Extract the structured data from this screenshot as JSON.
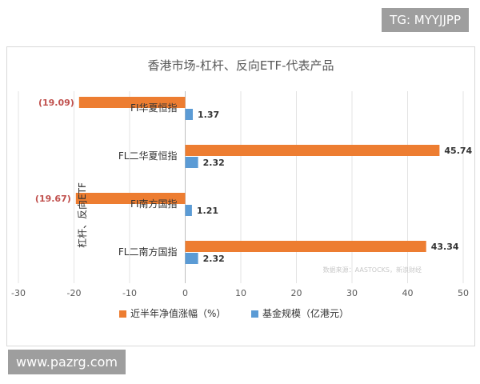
{
  "watermarks": {
    "telegram": "TG: MYYJJPP",
    "site": "www.pazrg.com"
  },
  "chart_data": {
    "type": "bar",
    "orientation": "horizontal",
    "title": "香港市场-杠杆、反向ETF-代表产品",
    "group_label": "杠杆、反向ETF",
    "source_note": "数据来源：AASTOCKS，新浪财经",
    "categories": [
      "FI华夏恒指",
      "FL二华夏恒指",
      "FI南方国指",
      "FL二南方国指"
    ],
    "series": [
      {
        "name": "近半年净值涨幅（%）",
        "color": "#ED7D31",
        "values": [
          -19.09,
          45.74,
          -19.67,
          43.34
        ],
        "labels": [
          "(19.09)",
          "45.74",
          "(19.67)",
          "43.34"
        ]
      },
      {
        "name": "基金规模（亿港元）",
        "color": "#5B9BD5",
        "values": [
          1.37,
          2.32,
          1.21,
          2.32
        ],
        "labels": [
          "1.37",
          "2.32",
          "1.21",
          "2.32"
        ]
      }
    ],
    "xlim": [
      -30,
      50
    ],
    "xticks": [
      -30,
      -20,
      -10,
      0,
      10,
      20,
      30,
      40,
      50
    ],
    "grid": true,
    "legend_position": "bottom",
    "negative_label_color": "#C0504D"
  }
}
